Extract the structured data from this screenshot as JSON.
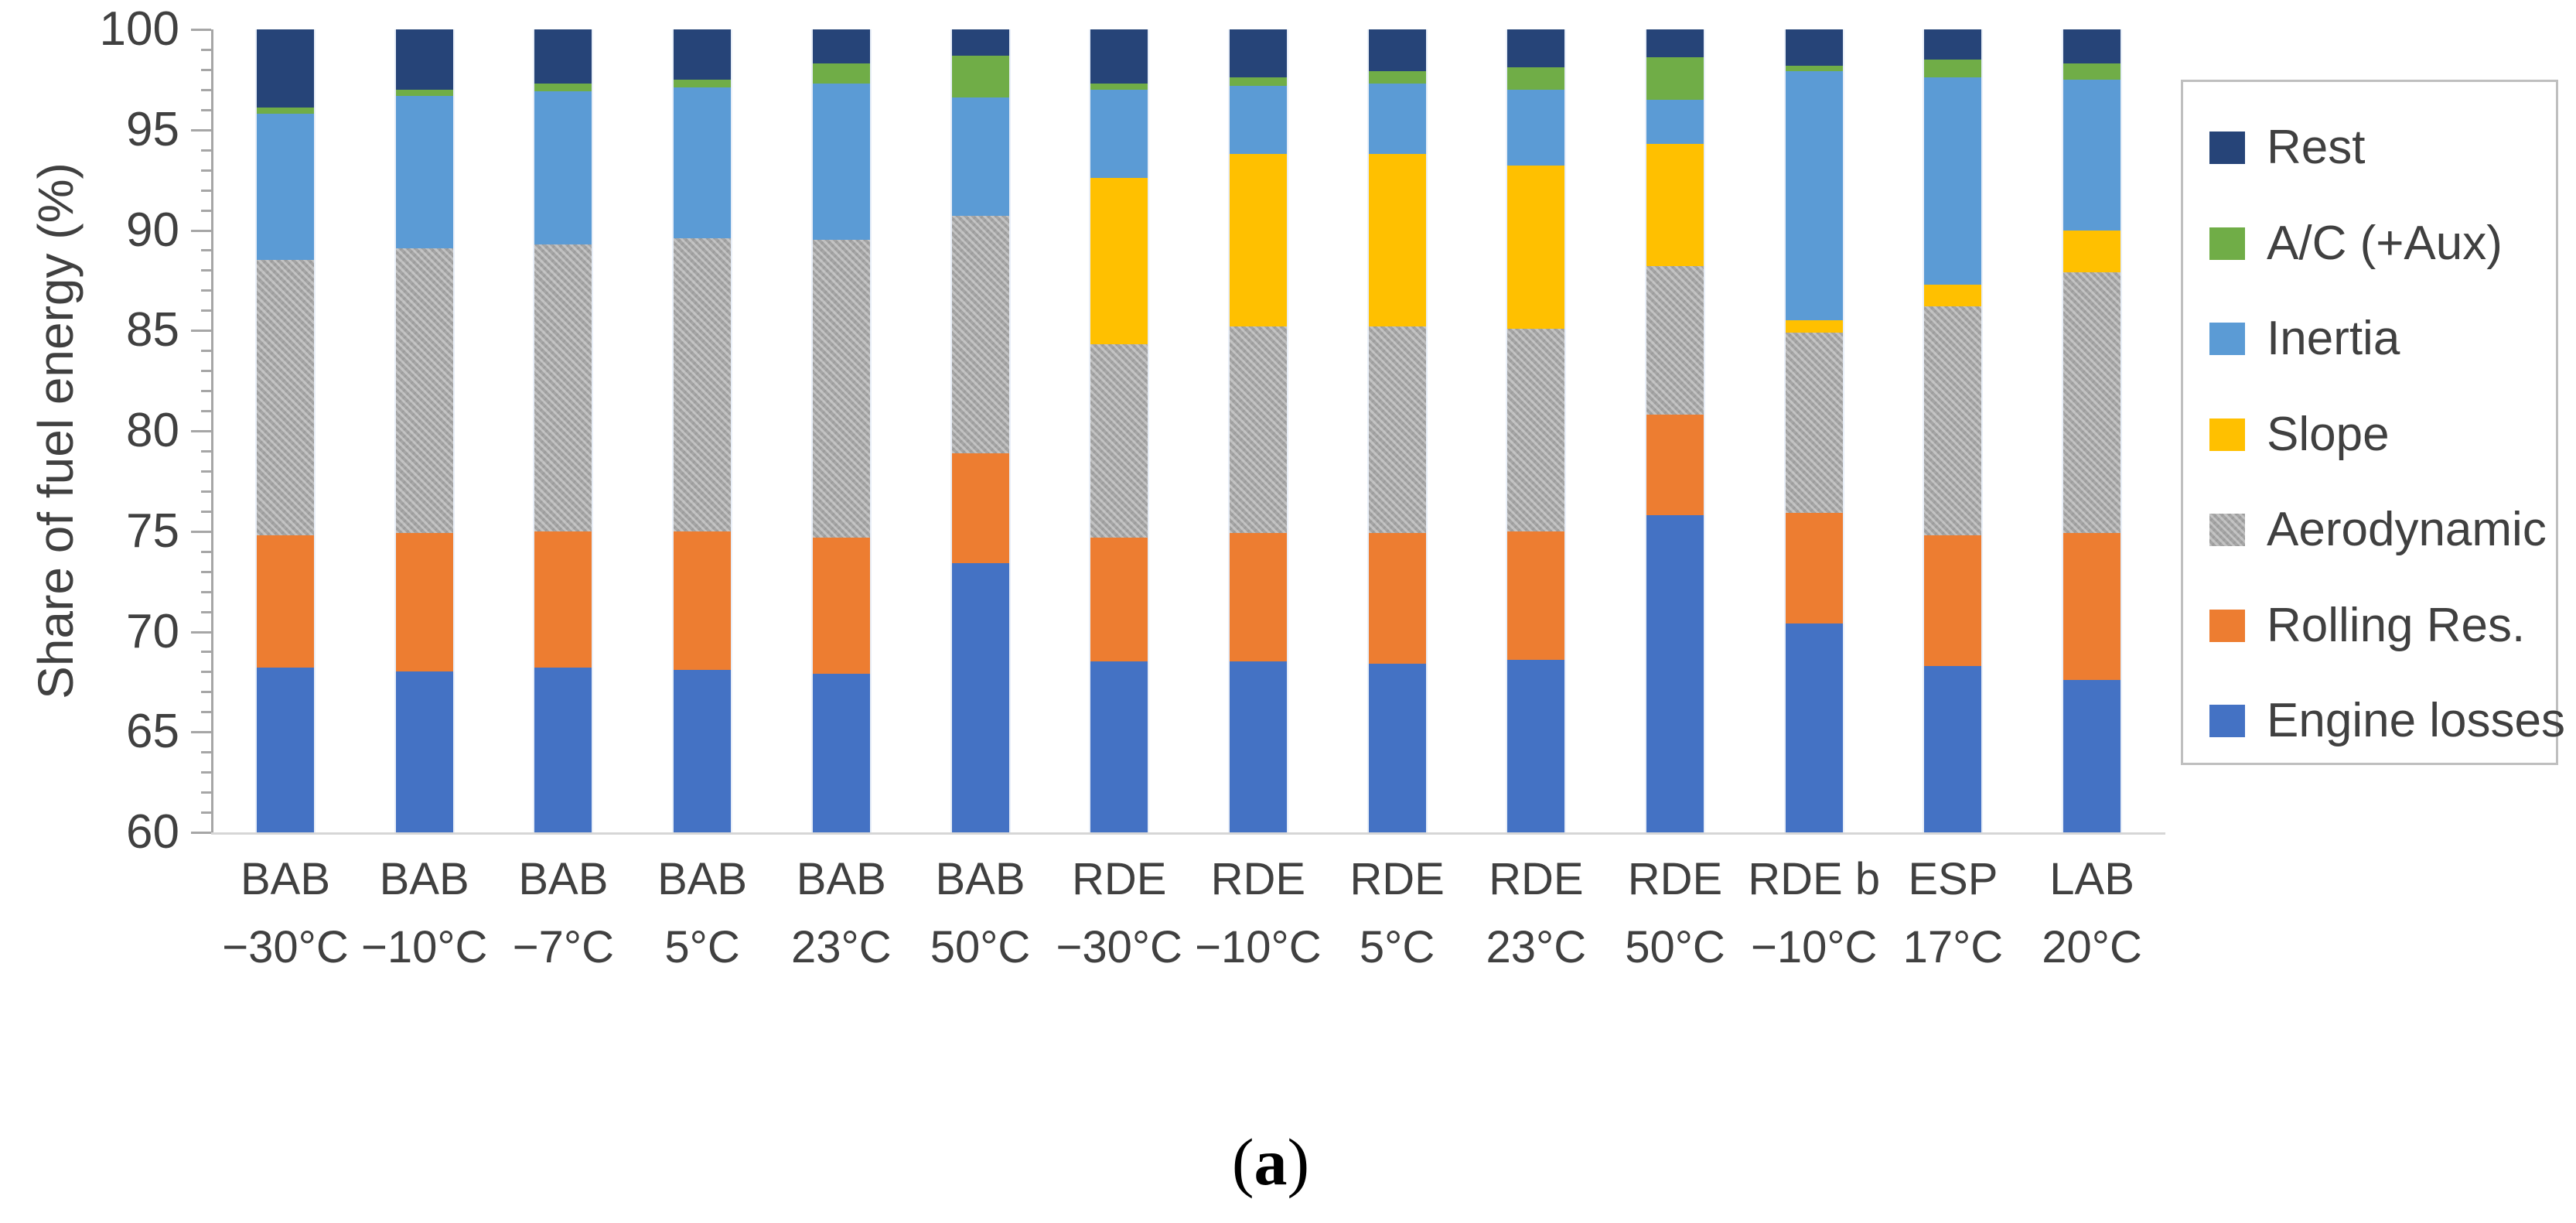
{
  "figure": {
    "caption_open": "(",
    "caption_letter": "a",
    "caption_close": ")"
  },
  "chart_data": {
    "type": "bar",
    "subtype": "stacked-vertical",
    "title": "",
    "xlabel": "",
    "ylabel": "Share of fuel energy (%)",
    "ylim": [
      60,
      100
    ],
    "yticks": [
      100,
      95,
      90,
      85,
      80,
      75,
      70,
      65,
      60
    ],
    "ytick_minor_step": 1,
    "grid": "off",
    "legend_position": "right",
    "legend_order_top_to_bottom": [
      "Rest",
      "A/C (+Aux)",
      "Inertia",
      "Slope",
      "Aerodynamic",
      "Rolling Res.",
      "Engine losses"
    ],
    "categories": [
      {
        "group": "BAB",
        "temp": "−30°C"
      },
      {
        "group": "BAB",
        "temp": "−10°C"
      },
      {
        "group": "BAB",
        "temp": "−7°C"
      },
      {
        "group": "BAB",
        "temp": "5°C"
      },
      {
        "group": "BAB",
        "temp": "23°C"
      },
      {
        "group": "BAB",
        "temp": "50°C"
      },
      {
        "group": "RDE",
        "temp": "−30°C"
      },
      {
        "group": "RDE",
        "temp": "−10°C"
      },
      {
        "group": "RDE",
        "temp": "5°C"
      },
      {
        "group": "RDE",
        "temp": "23°C"
      },
      {
        "group": "RDE",
        "temp": "50°C"
      },
      {
        "group": "RDE b",
        "temp": "−10°C"
      },
      {
        "group": "ESP",
        "temp": "17°C"
      },
      {
        "group": "LAB",
        "temp": "20°C"
      }
    ],
    "series": [
      {
        "name": "Engine losses",
        "color": "#4472C4",
        "pattern": false,
        "values": [
          68.2,
          68.0,
          68.2,
          68.1,
          67.9,
          73.4,
          68.5,
          68.5,
          68.4,
          68.6,
          75.8,
          70.4,
          68.3,
          67.6
        ]
      },
      {
        "name": "Rolling Res.",
        "color": "#ED7D31",
        "pattern": false,
        "values": [
          6.6,
          6.9,
          6.8,
          6.9,
          6.8,
          5.5,
          6.2,
          6.4,
          6.5,
          6.4,
          5.0,
          5.5,
          6.5,
          7.3
        ]
      },
      {
        "name": "Aerodynamic",
        "color": "#A5A5A5",
        "pattern": true,
        "values": [
          13.7,
          14.2,
          14.3,
          14.6,
          14.8,
          11.8,
          9.6,
          10.3,
          10.3,
          10.1,
          7.4,
          9.0,
          11.4,
          13.0
        ]
      },
      {
        "name": "Slope",
        "color": "#FFC000",
        "pattern": false,
        "values": [
          0,
          0,
          0,
          0,
          0,
          0,
          8.3,
          8.6,
          8.6,
          8.1,
          6.1,
          0.6,
          1.1,
          2.1
        ]
      },
      {
        "name": "Inertia",
        "color": "#5B9BD5",
        "pattern": false,
        "values": [
          7.3,
          7.6,
          7.6,
          7.5,
          7.8,
          5.9,
          4.4,
          3.4,
          3.5,
          3.8,
          2.2,
          12.4,
          10.3,
          7.5
        ]
      },
      {
        "name": "A/C (+Aux)",
        "color": "#70AD47",
        "pattern": false,
        "values": [
          0.3,
          0.3,
          0.4,
          0.4,
          1.0,
          2.1,
          0.3,
          0.4,
          0.6,
          1.1,
          2.1,
          0.3,
          0.9,
          0.8
        ]
      },
      {
        "name": "Rest",
        "color": "#264478",
        "pattern": false,
        "values": [
          3.9,
          3.0,
          2.7,
          2.5,
          1.7,
          1.3,
          2.7,
          2.4,
          2.1,
          1.9,
          1.4,
          1.8,
          1.5,
          1.7
        ]
      }
    ]
  }
}
